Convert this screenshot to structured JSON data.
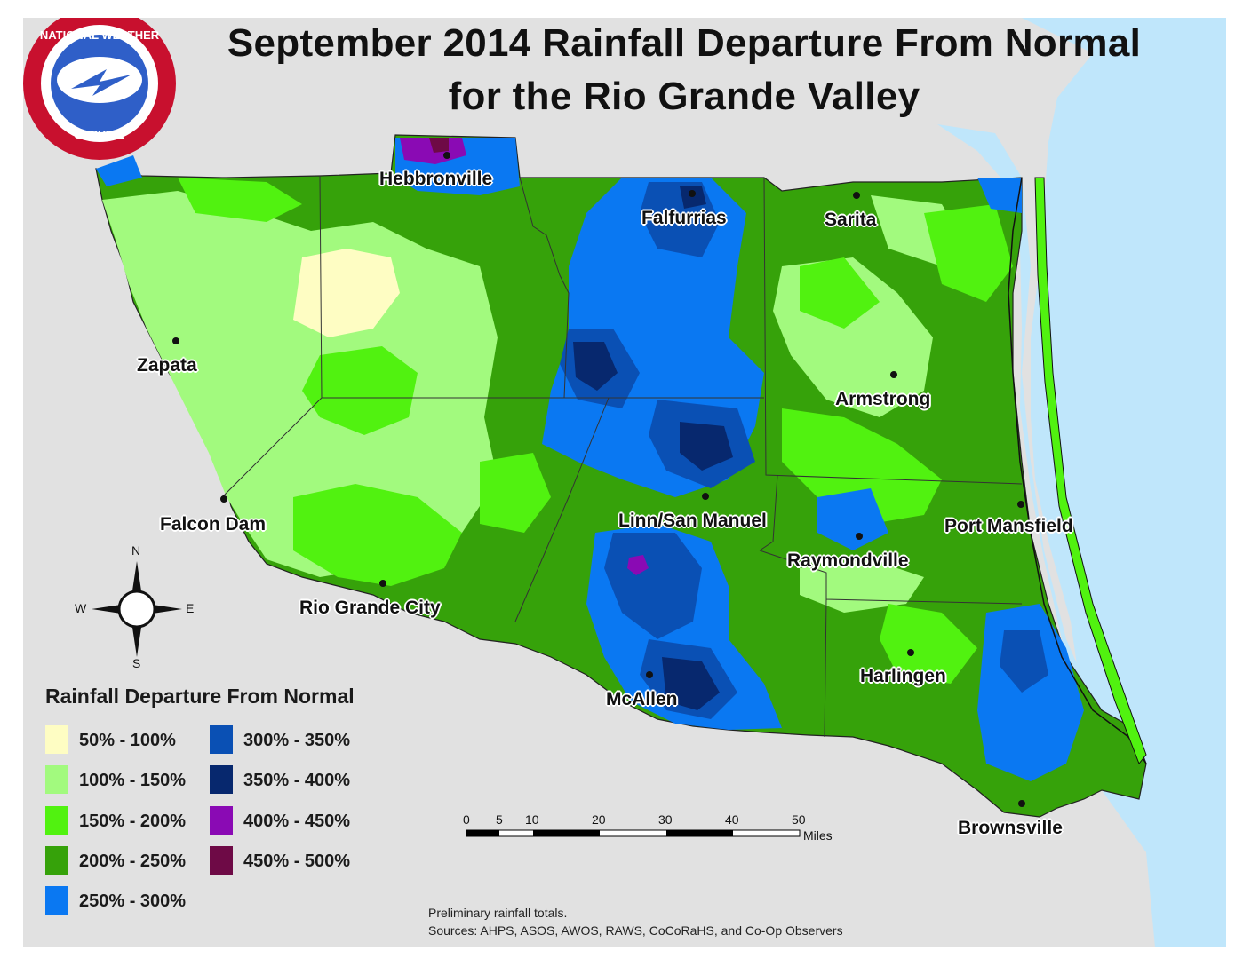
{
  "title": {
    "line1": "September 2014 Rainfall Departure From Normal",
    "line2": "for the Rio Grande Valley"
  },
  "logo": {
    "text": "NATIONAL WEATHER SERVICE",
    "icon": "nws-logo-icon"
  },
  "colors": {
    "land_outside": "#e1e1e1",
    "water": "#bfe6fb"
  },
  "cities": [
    {
      "name": "Hebbronville"
    },
    {
      "name": "Falfurrias"
    },
    {
      "name": "Sarita"
    },
    {
      "name": "Zapata"
    },
    {
      "name": "Armstrong"
    },
    {
      "name": "Falcon Dam"
    },
    {
      "name": "Linn/San Manuel"
    },
    {
      "name": "Port Mansfield"
    },
    {
      "name": "Raymondville"
    },
    {
      "name": "Rio Grande City"
    },
    {
      "name": "Harlingen"
    },
    {
      "name": "McAllen"
    },
    {
      "name": "Brownsville"
    }
  ],
  "compass": {
    "n": "N",
    "s": "S",
    "e": "E",
    "w": "W"
  },
  "legend": {
    "title": "Rainfall Departure From Normal",
    "items": [
      {
        "label": "50% - 100%",
        "color": "#fefdc3"
      },
      {
        "label": "100% - 150%",
        "color": "#a2fa7e"
      },
      {
        "label": "150% - 200%",
        "color": "#51f210"
      },
      {
        "label": "200% - 250%",
        "color": "#36a20a"
      },
      {
        "label": "250% - 300%",
        "color": "#0a78f2"
      },
      {
        "label": "300% - 350%",
        "color": "#0a50b4"
      },
      {
        "label": "350% - 400%",
        "color": "#07286e"
      },
      {
        "label": "400% - 450%",
        "color": "#8a0ab4"
      },
      {
        "label": "450% - 500%",
        "color": "#6e0a46"
      }
    ]
  },
  "scale_bar": {
    "ticks": [
      "0",
      "5",
      "10",
      "20",
      "30",
      "40",
      "50"
    ],
    "unit": "Miles"
  },
  "notes": {
    "line1": "Preliminary rainfall totals.",
    "line2": "Sources: AHPS, ASOS, AWOS, RAWS, CoCoRaHS, and Co-Op Observers"
  }
}
